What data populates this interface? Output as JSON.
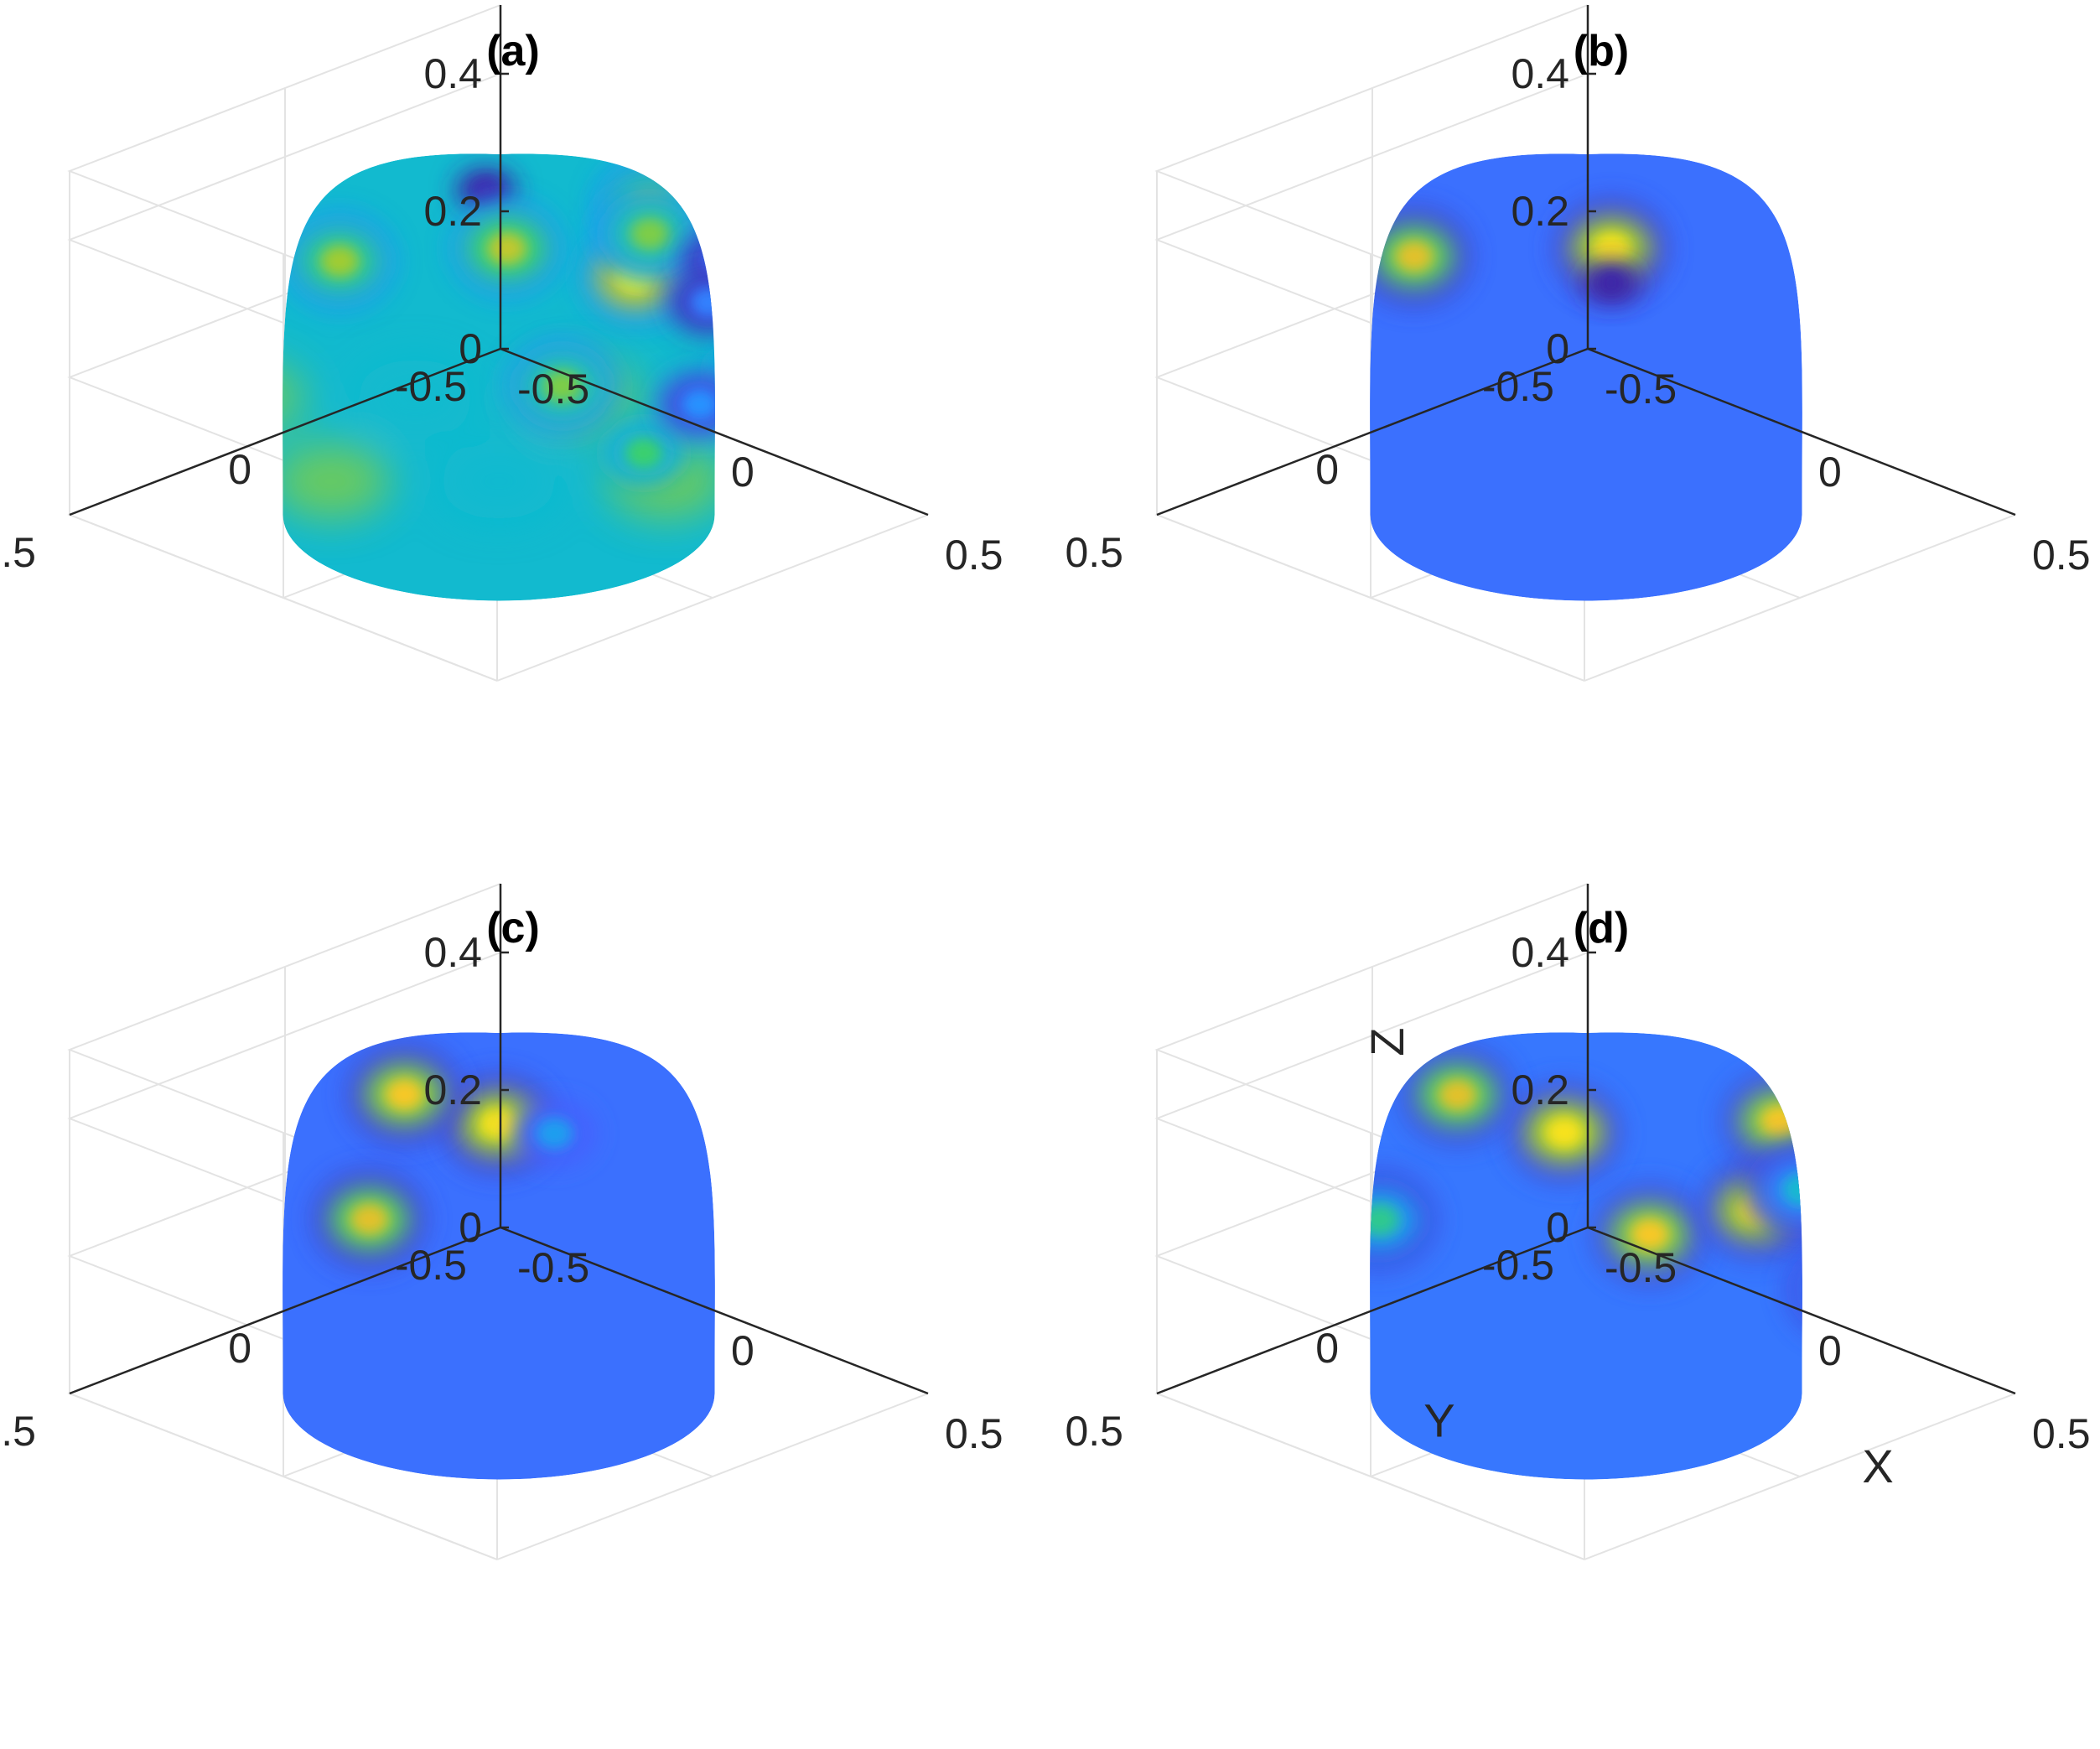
{
  "chart_data": [
    {
      "type": "surface",
      "title": "(a)",
      "xlabel": "",
      "ylabel": "",
      "zlabel": "",
      "xlim": [
        -0.5,
        0.5
      ],
      "ylim": [
        -0.5,
        0.5
      ],
      "zlim": [
        0,
        0.5
      ],
      "xticks": [
        "-0.5",
        "0",
        "0.5"
      ],
      "yticks": [
        "-0.5",
        "0",
        "0.5"
      ],
      "zticks": [
        "0",
        "0.2",
        "0.4"
      ],
      "grid": true,
      "surface": "hemisphere, radius 0.5",
      "colormap": "parula",
      "base_level": 0.45,
      "peaks": [
        {
          "x": -0.02,
          "y": 0.01,
          "z": 0.47,
          "value": 0.02
        },
        {
          "x": 0.27,
          "y": -0.05,
          "z": 0.4,
          "value": 1.0
        },
        {
          "x": 0.05,
          "y": -0.3,
          "z": 0.39,
          "value": 0.75
        },
        {
          "x": -0.1,
          "y": 0.27,
          "z": 0.41,
          "value": 0.75
        },
        {
          "x": 0.14,
          "y": 0.12,
          "z": 0.45,
          "value": 0.8
        },
        {
          "x": 0.35,
          "y": 0.2,
          "z": 0.32,
          "value": 0.7
        },
        {
          "x": -0.05,
          "y": -0.4,
          "z": 0.3,
          "value": 0.7
        },
        {
          "x": 0.4,
          "y": -0.18,
          "z": 0.26,
          "value": 0.6
        },
        {
          "x": 0.18,
          "y": -0.44,
          "z": 0.17,
          "value": 0.6
        },
        {
          "x": 0.3,
          "y": -0.33,
          "z": 0.23,
          "value": 0.6
        },
        {
          "x": 0.44,
          "y": 0.1,
          "z": 0.22,
          "value": 0.6
        },
        {
          "x": 0.4,
          "y": -0.28,
          "z": 0.12,
          "value": 0.55
        },
        {
          "x": 0.22,
          "y": -0.3,
          "z": 0.35,
          "value": 0.25
        },
        {
          "x": 0.33,
          "y": -0.16,
          "z": 0.35,
          "value": 0.25
        },
        {
          "x": 0.42,
          "y": -0.05,
          "z": 0.25,
          "value": 0.3
        }
      ]
    },
    {
      "type": "surface",
      "title": "(b)",
      "xlabel": "",
      "ylabel": "",
      "zlabel": "",
      "xlim": [
        -0.5,
        0.5
      ],
      "ylim": [
        -0.5,
        0.5
      ],
      "zlim": [
        0,
        0.5
      ],
      "xticks": [
        "-0.5",
        "0",
        "0.5"
      ],
      "yticks": [
        "-0.5",
        "0",
        "0.5"
      ],
      "zticks": [
        "0",
        "0.2",
        "0.4"
      ],
      "grid": true,
      "surface": "hemisphere, radius 0.5",
      "colormap": "parula",
      "base_level": 0.2,
      "peaks": [
        {
          "x": 0.16,
          "y": 0.1,
          "z": 0.45,
          "value": 0.95
        },
        {
          "x": -0.15,
          "y": 0.25,
          "z": 0.4,
          "value": 0.85
        },
        {
          "x": 0.16,
          "y": 0.1,
          "z": 0.4,
          "value": 0.0
        }
      ]
    },
    {
      "type": "surface",
      "title": "(c)",
      "xlabel": "",
      "ylabel": "",
      "zlabel": "",
      "xlim": [
        -0.5,
        0.5
      ],
      "ylim": [
        -0.5,
        0.5
      ],
      "zlim": [
        0,
        0.5
      ],
      "xticks": [
        "-0.5",
        "0",
        "0.5"
      ],
      "yticks": [
        "-0.5",
        "0",
        "0.5"
      ],
      "zticks": [
        "0",
        "0.2",
        "0.4"
      ],
      "grid": true,
      "surface": "hemisphere, radius 0.5",
      "colormap": "parula",
      "base_level": 0.2,
      "peaks": [
        {
          "x": 0.12,
          "y": 0.12,
          "z": 0.45,
          "value": 0.95
        },
        {
          "x": -0.12,
          "y": 0.1,
          "z": 0.43,
          "value": 0.9
        },
        {
          "x": 0.05,
          "y": 0.35,
          "z": 0.35,
          "value": 0.85
        },
        {
          "x": 0.11,
          "y": -0.02,
          "z": 0.4,
          "value": 0.35
        }
      ]
    },
    {
      "type": "surface",
      "title": "(d)",
      "xlabel": "X",
      "ylabel": "Y",
      "zlabel": "Z",
      "xlim": [
        -0.5,
        0.5
      ],
      "ylim": [
        -0.5,
        0.5
      ],
      "zlim": [
        0,
        0.5
      ],
      "xticks": [
        "-0.5",
        "0",
        "0.5"
      ],
      "yticks": [
        "-0.5",
        "0",
        "0.5"
      ],
      "zticks": [
        "0",
        "0.2",
        "0.4"
      ],
      "grid": true,
      "surface": "hemisphere, radius 0.5",
      "colormap": "parula",
      "base_level": 0.22,
      "peaks": [
        {
          "x": 0.1,
          "y": 0.15,
          "z": 0.44,
          "value": 0.95
        },
        {
          "x": -0.2,
          "y": 0.1,
          "z": 0.41,
          "value": 0.85
        },
        {
          "x": 0.3,
          "y": 0.15,
          "z": 0.34,
          "value": 0.9
        },
        {
          "x": 0.33,
          "y": -0.07,
          "z": 0.33,
          "value": 0.95
        },
        {
          "x": 0.15,
          "y": -0.3,
          "z": 0.36,
          "value": 0.9
        },
        {
          "x": -0.1,
          "y": 0.38,
          "z": 0.32,
          "value": 0.55
        },
        {
          "x": 0.4,
          "y": -0.2,
          "z": 0.2,
          "value": 0.45
        },
        {
          "x": 0.05,
          "y": -0.45,
          "z": 0.2,
          "value": 0.45
        },
        {
          "x": 0.25,
          "y": -0.4,
          "z": 0.18,
          "value": 0.4
        }
      ]
    }
  ]
}
